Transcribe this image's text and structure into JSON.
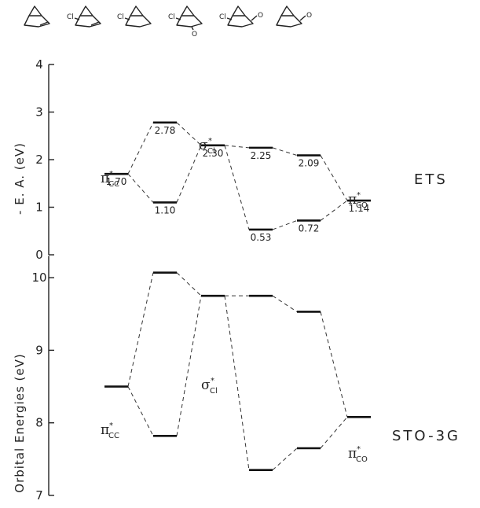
{
  "molecules": [
    {
      "atoms": []
    },
    {
      "atoms": [
        "Cl"
      ]
    },
    {
      "atoms": [
        "Cl"
      ]
    },
    {
      "atoms": [
        "Cl",
        "O"
      ]
    },
    {
      "atoms": [
        "Cl",
        "O"
      ]
    },
    {
      "atoms": [
        "O"
      ]
    }
  ],
  "panels": {
    "ets": {
      "method_label": "ETS",
      "ylabel": "- E. A. (eV)",
      "yticks": [
        "0",
        "1",
        "2",
        "3",
        "4"
      ],
      "ylim": [
        0,
        4
      ]
    },
    "sto": {
      "method_label": "STO-3G",
      "ylabel": "Orbital Energies (eV)",
      "yticks": [
        "7",
        "8",
        "9",
        "10"
      ],
      "ylim": [
        7,
        10.3
      ]
    }
  },
  "symbols": {
    "pi": "π",
    "sigma": "σ",
    "star": "*",
    "cc": "CC",
    "cl": "Cl",
    "co": "CO"
  },
  "chart_data": [
    {
      "type": "energy-level diagram",
      "panel": "ETS",
      "levels": [
        {
          "column": 1,
          "value": 1.7,
          "label": "1.70",
          "symbol": "pi*CC"
        },
        {
          "column": 2,
          "value": 2.78,
          "label": "2.78"
        },
        {
          "column": 2,
          "value": 1.1,
          "label": "1.10"
        },
        {
          "column": 3,
          "value": 2.3,
          "label": "2.30",
          "symbol": "sigma*Cl"
        },
        {
          "column": 4,
          "value": 2.25,
          "label": "2.25"
        },
        {
          "column": 4,
          "value": 0.53,
          "label": "0.53"
        },
        {
          "column": 5,
          "value": 2.09,
          "label": "2.09"
        },
        {
          "column": 5,
          "value": 0.72,
          "label": "0.72"
        },
        {
          "column": 6,
          "value": 1.14,
          "label": "1.14",
          "symbol": "pi*CO"
        }
      ],
      "connections": [
        [
          0,
          1
        ],
        [
          0,
          2
        ],
        [
          1,
          3
        ],
        [
          2,
          3
        ],
        [
          3,
          4
        ],
        [
          3,
          5
        ],
        [
          4,
          6
        ],
        [
          5,
          7
        ],
        [
          6,
          8
        ],
        [
          7,
          8
        ]
      ]
    },
    {
      "type": "energy-level diagram",
      "panel": "STO-3G",
      "levels": [
        {
          "column": 1,
          "value": 8.5,
          "symbol": "pi*CC"
        },
        {
          "column": 2,
          "value": 10.07
        },
        {
          "column": 2,
          "value": 7.82
        },
        {
          "column": 3,
          "value": 9.75,
          "symbol": "sigma*Cl"
        },
        {
          "column": 4,
          "value": 9.75
        },
        {
          "column": 4,
          "value": 7.35
        },
        {
          "column": 5,
          "value": 9.53
        },
        {
          "column": 5,
          "value": 7.65
        },
        {
          "column": 6,
          "value": 8.08,
          "symbol": "pi*CO"
        }
      ],
      "connections": [
        [
          0,
          1
        ],
        [
          0,
          2
        ],
        [
          1,
          3
        ],
        [
          2,
          3
        ],
        [
          3,
          4
        ],
        [
          3,
          5
        ],
        [
          4,
          6
        ],
        [
          5,
          7
        ],
        [
          6,
          8
        ],
        [
          7,
          8
        ]
      ]
    }
  ]
}
